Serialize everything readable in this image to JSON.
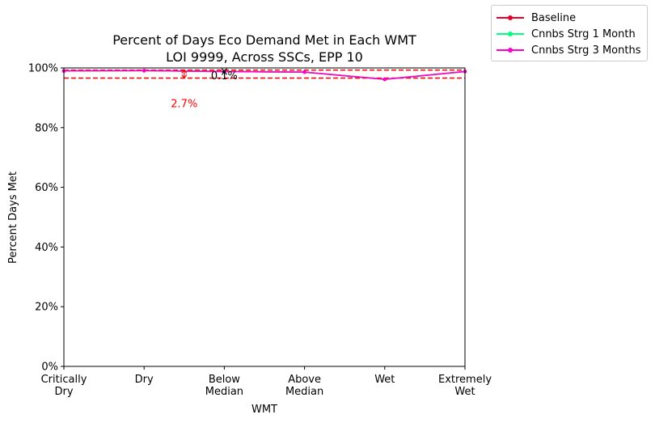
{
  "chart_data": {
    "type": "line",
    "title": "Percent of Days Eco Demand Met in Each WMT",
    "subtitle": "LOI 9999, Across SSCs, EPP 10",
    "xlabel": "WMT",
    "ylabel": "Percent Days Met",
    "categories": [
      "Critically\nDry",
      "Dry",
      "Below\nMedian",
      "Above\nMedian",
      "Wet",
      "Extremely\nWet"
    ],
    "ylim": [
      0,
      100
    ],
    "yticks": [
      "0%",
      "20%",
      "40%",
      "60%",
      "80%",
      "100%"
    ],
    "grid": false,
    "legend_position": "outside top-right",
    "series": [
      {
        "name": "Baseline",
        "color": "#e8002a",
        "values": [
          99.0,
          99.1,
          98.8,
          98.6,
          96.2,
          98.8
        ]
      },
      {
        "name": "Cnnbs Strg 1 Month",
        "color": "#00ff7f",
        "values": [
          99.0,
          99.1,
          98.8,
          98.6,
          96.2,
          98.8
        ]
      },
      {
        "name": "Cnnbs Strg 3 Months",
        "color": "#ff00cc",
        "values": [
          99.0,
          99.1,
          98.8,
          98.6,
          96.2,
          98.8
        ]
      }
    ],
    "reference_lines": [
      {
        "y": 99.3,
        "color": "#ff0000",
        "style": "dashed"
      },
      {
        "y": 96.6,
        "color": "#ff0000",
        "style": "dashed"
      }
    ],
    "annotations": [
      {
        "text": "2.7%",
        "color": "#ff0000",
        "x_index": 1.5,
        "y_low": 96.6,
        "y_high": 99.3
      },
      {
        "text": "0.1%",
        "color": "#000000",
        "x_index": 2.0,
        "y_low": 98.7,
        "y_high": 98.8
      }
    ]
  }
}
